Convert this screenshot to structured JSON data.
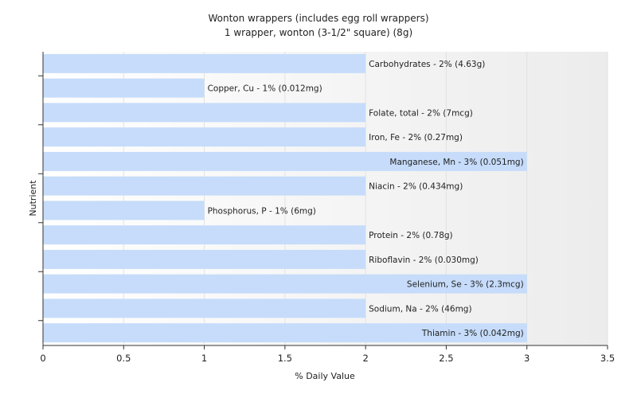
{
  "chart_data": {
    "type": "bar",
    "orientation": "horizontal",
    "title": "Wonton wrappers (includes egg roll wrappers)",
    "subtitle": "1 wrapper, wonton (3-1/2\" square) (8g)",
    "xlabel": "% Daily Value",
    "ylabel": "Nutrient",
    "xlim": [
      0,
      3.5
    ],
    "xticks": [
      "0",
      "0.5",
      "1",
      "1.5",
      "2",
      "2.5",
      "3",
      "3.5"
    ],
    "xtick_values": [
      0,
      0.5,
      1,
      1.5,
      2,
      2.5,
      3,
      3.5
    ],
    "grid": true,
    "bar_color": "#c6dcfa",
    "categories": [
      "Carbohydrates",
      "Copper, Cu",
      "Folate, total",
      "Iron, Fe",
      "Manganese, Mn",
      "Niacin",
      "Phosphorus, P",
      "Protein",
      "Riboflavin",
      "Selenium, Se",
      "Sodium, Na",
      "Thiamin"
    ],
    "values": [
      2,
      1,
      2,
      2,
      3,
      2,
      1,
      2,
      2,
      3,
      2,
      3
    ],
    "labels": [
      "Carbohydrates - 2% (4.63g)",
      "Copper, Cu - 1% (0.012mg)",
      "Folate, total - 2% (7mcg)",
      "Iron, Fe - 2% (0.27mg)",
      "Manganese, Mn - 3% (0.051mg)",
      "Niacin - 2% (0.434mg)",
      "Phosphorus, P - 1% (6mg)",
      "Protein - 2% (0.78g)",
      "Riboflavin - 2% (0.030mg)",
      "Selenium, Se - 3% (2.3mcg)",
      "Sodium, Na - 2% (46mg)",
      "Thiamin - 3% (0.042mg)"
    ]
  }
}
